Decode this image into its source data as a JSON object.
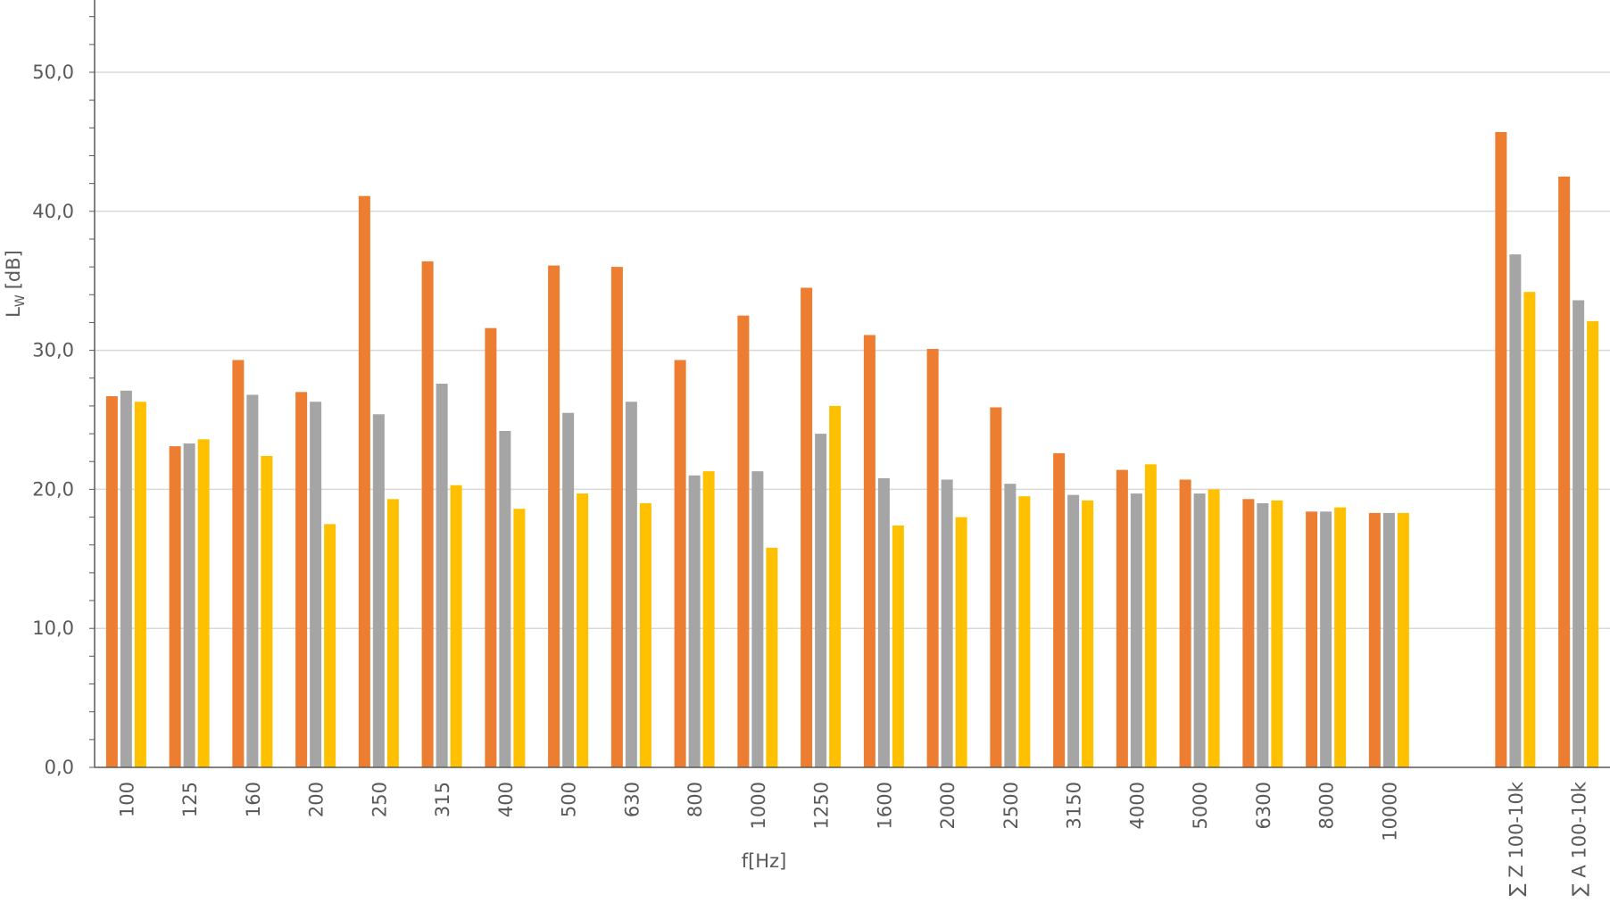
{
  "chart_data": {
    "type": "bar",
    "title": "",
    "xlabel": "f[Hz]",
    "ylabel_main": "L",
    "ylabel_sub": "W",
    "ylabel_unit": "[dB]",
    "ylim": [
      0,
      55
    ],
    "yticks": [
      "0,0",
      "10,0",
      "20,0",
      "30,0",
      "40,0",
      "50,0"
    ],
    "ytick_values": [
      0,
      10,
      20,
      30,
      40,
      50
    ],
    "grid": true,
    "legend": "none",
    "categories": [
      "100",
      "125",
      "160",
      "200",
      "250",
      "315",
      "400",
      "500",
      "630",
      "800",
      "1000",
      "1250",
      "1600",
      "2000",
      "2500",
      "3150",
      "4000",
      "5000",
      "6300",
      "8000",
      "10000",
      "",
      "∑ Z 100-10k",
      "∑ A 100-10k"
    ],
    "series": [
      {
        "color": "#ed7d31",
        "values": [
          26.7,
          23.1,
          29.3,
          27.0,
          41.1,
          36.4,
          31.6,
          36.1,
          36.0,
          29.3,
          32.5,
          34.5,
          31.1,
          30.1,
          25.9,
          22.6,
          21.4,
          20.7,
          19.3,
          18.4,
          18.3,
          null,
          45.7,
          42.5
        ]
      },
      {
        "color": "#a5a5a5",
        "values": [
          27.1,
          23.3,
          26.8,
          26.3,
          25.4,
          27.6,
          24.2,
          25.5,
          26.3,
          21.0,
          21.3,
          24.0,
          20.8,
          20.7,
          20.4,
          19.6,
          19.7,
          19.7,
          19.0,
          18.4,
          18.3,
          null,
          36.9,
          33.6
        ]
      },
      {
        "color": "#ffc000",
        "values": [
          26.3,
          23.6,
          22.4,
          17.5,
          19.3,
          20.3,
          18.6,
          19.7,
          19.0,
          21.3,
          15.8,
          26.0,
          17.4,
          18.0,
          19.5,
          19.2,
          21.8,
          20.0,
          19.2,
          18.7,
          18.3,
          null,
          34.2,
          32.1
        ]
      }
    ]
  }
}
